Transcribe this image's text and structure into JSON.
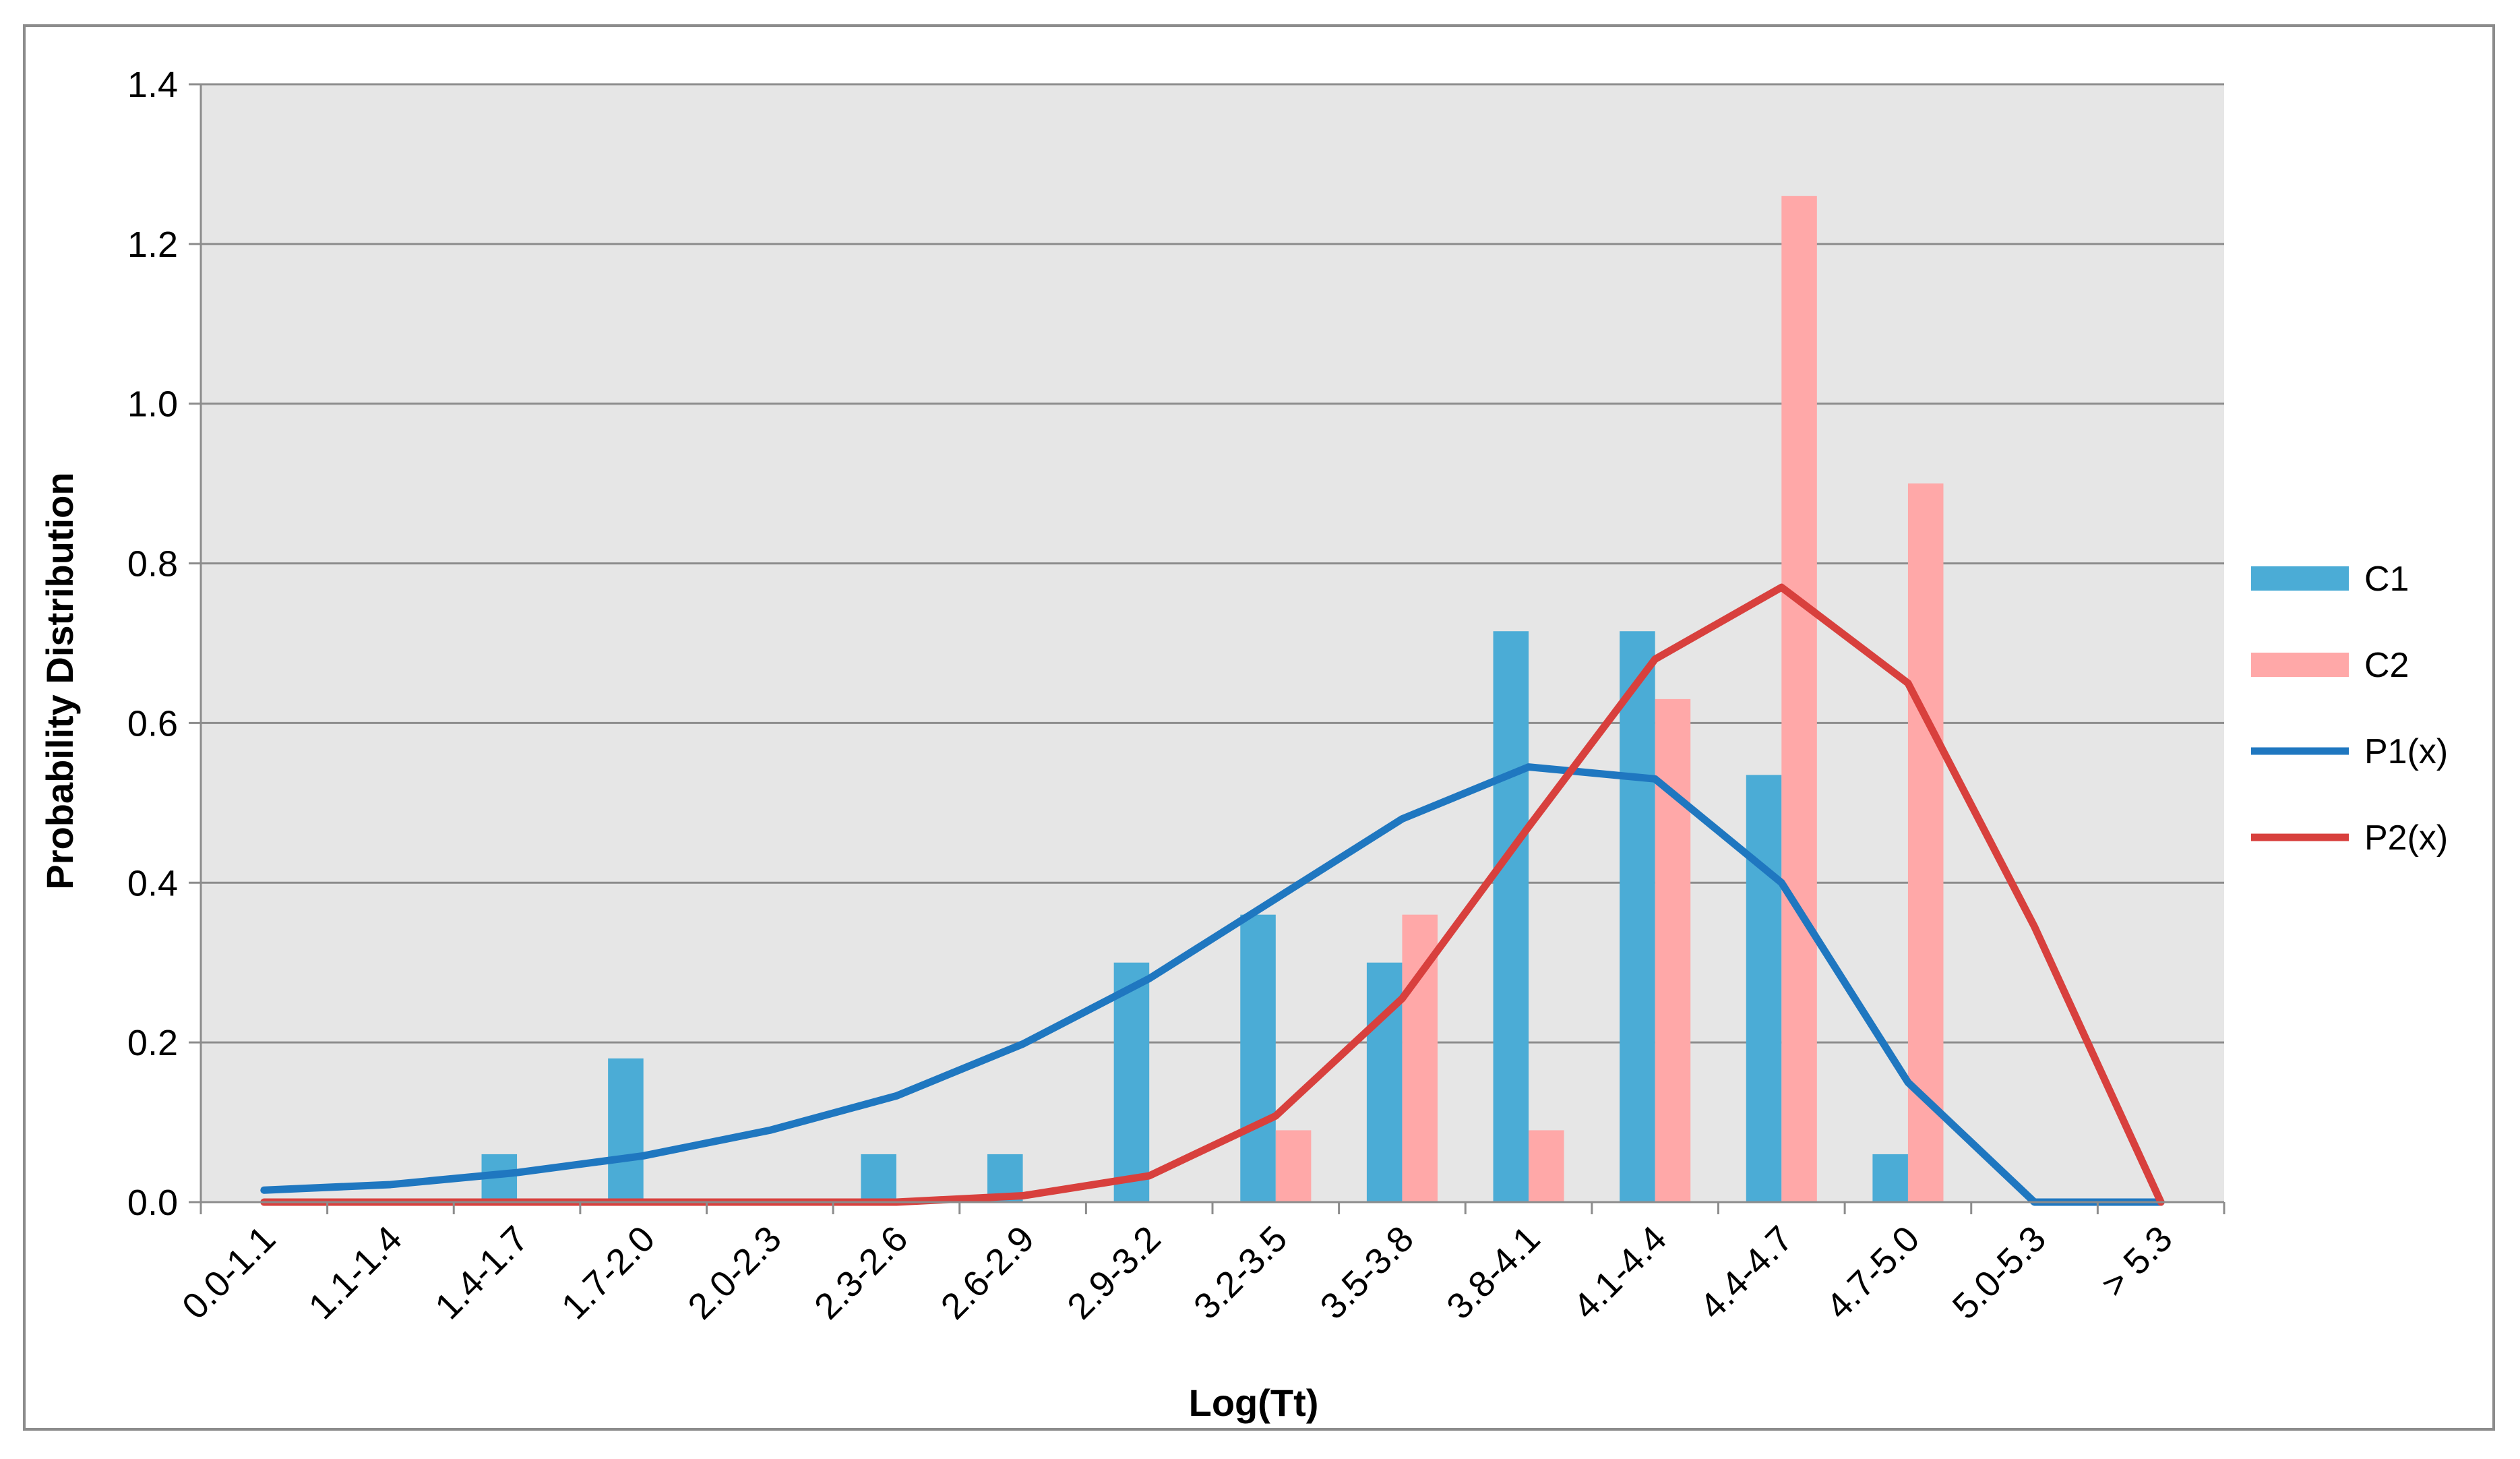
{
  "chart_data": {
    "type": "bar",
    "title": "",
    "xlabel": "Log(Tt)",
    "ylabel": "Probability Distribution",
    "ylim": [
      0,
      1.4
    ],
    "yticks": [
      "0.0",
      "0.2",
      "0.4",
      "0.6",
      "0.8",
      "1.0",
      "1.2",
      "1.4"
    ],
    "grid": true,
    "legend_position": "right",
    "categories": [
      "0.0-1.1",
      "1.1-1.4",
      "1.4-1.7",
      "1.7-2.0",
      "2.0-2.3",
      "2.3-2.6",
      "2.6-2.9",
      "2.9-3.2",
      "3.2-3.5",
      "3.5-3.8",
      "3.8-4.1",
      "4.1-4.4",
      "4.4-4.7",
      "4.7-5.0",
      "5.0-5.3",
      "> 5.3"
    ],
    "series": [
      {
        "name": "C1",
        "kind": "bar",
        "color": "#4bacd6",
        "values": [
          0,
          0,
          0.06,
          0.18,
          0,
          0.06,
          0.06,
          0.3,
          0.36,
          0.3,
          0.715,
          0.715,
          0.535,
          0.06,
          0,
          0
        ]
      },
      {
        "name": "C2",
        "kind": "bar",
        "color": "#ffa8a8",
        "values": [
          0,
          0,
          0,
          0,
          0,
          0,
          0,
          0,
          0.09,
          0.36,
          0.09,
          0.63,
          1.26,
          0.9,
          0,
          0
        ]
      },
      {
        "name": "P1(x)",
        "kind": "line",
        "color": "#1f77c0",
        "values": [
          0.015,
          0.022,
          0.037,
          0.058,
          0.09,
          0.133,
          0.198,
          0.28,
          0.38,
          0.48,
          0.545,
          0.53,
          0.4,
          0.15,
          0.0,
          0.0
        ]
      },
      {
        "name": "P2(x)",
        "kind": "line",
        "color": "#d8403d",
        "values": [
          0.0,
          0.0,
          0.0,
          0.0,
          0.0,
          0.0,
          0.008,
          0.033,
          0.108,
          0.255,
          0.47,
          0.68,
          0.77,
          0.65,
          0.345,
          0.0
        ]
      }
    ]
  },
  "colors": {
    "plot_background": "#e6e6e6",
    "gridline": "#8c8c8c",
    "frame_border": "#8c8c8c"
  }
}
